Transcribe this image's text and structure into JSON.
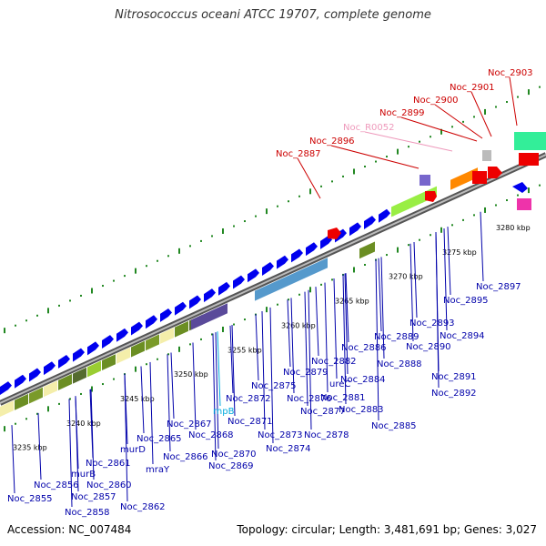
{
  "title": "Nitrosococcus oceani ATCC 19707, complete genome",
  "accession": "Accession: NC_007484",
  "summary": "Topology: circular; Length: 3,481,691 bp; Genes: 3,027",
  "colors": {
    "gene_blue": "#0000ee",
    "gene_red": "#ee0000",
    "label_blue": "#0000aa",
    "label_red": "#cc0000",
    "label_pink": "#ee99bb",
    "label_cyan": "#00aadd",
    "backbone": "#888888",
    "ticks": "#228822"
  },
  "kbp_ticks": [
    "3235 kbp",
    "3240 kbp",
    "3245 kbp",
    "3250 kbp",
    "3255 kbp",
    "3260 kbp",
    "3265 kbp",
    "3270 kbp",
    "3275 kbp",
    "3280 kbp"
  ],
  "gene_labels_top": [
    {
      "text": "Noc_2887",
      "color": "red"
    },
    {
      "text": "Noc_2896",
      "color": "red"
    },
    {
      "text": "Noc_R0052",
      "color": "pink"
    },
    {
      "text": "Noc_2899",
      "color": "red"
    },
    {
      "text": "Noc_2900",
      "color": "red"
    },
    {
      "text": "Noc_2901",
      "color": "red"
    },
    {
      "text": "Noc_2903",
      "color": "red"
    }
  ],
  "gene_labels_bottom": [
    {
      "text": "Noc_2855"
    },
    {
      "text": "Noc_2856"
    },
    {
      "text": "murB"
    },
    {
      "text": "Noc_2857"
    },
    {
      "text": "Noc_2858"
    },
    {
      "text": "Noc_2860"
    },
    {
      "text": "Noc_2861"
    },
    {
      "text": "murD"
    },
    {
      "text": "Noc_2862"
    },
    {
      "text": "mraY"
    },
    {
      "text": "Noc_2865"
    },
    {
      "text": "Noc_2866"
    },
    {
      "text": "Noc_2867"
    },
    {
      "text": "Noc_2868"
    },
    {
      "text": "rnpB",
      "color": "cyan"
    },
    {
      "text": "Noc_2869"
    },
    {
      "text": "Noc_2870"
    },
    {
      "text": "Noc_2871"
    },
    {
      "text": "Noc_2872"
    },
    {
      "text": "Noc_2873"
    },
    {
      "text": "Noc_2874"
    },
    {
      "text": "Noc_2875"
    },
    {
      "text": "Noc_2876"
    },
    {
      "text": "Noc_2877"
    },
    {
      "text": "Noc_2878"
    },
    {
      "text": "Noc_2879"
    },
    {
      "text": "ureC"
    },
    {
      "text": "Noc_2881"
    },
    {
      "text": "Noc_2882"
    },
    {
      "text": "Noc_2883"
    },
    {
      "text": "Noc_2884"
    },
    {
      "text": "Noc_2885"
    },
    {
      "text": "Noc_2886"
    },
    {
      "text": "Noc_2888"
    },
    {
      "text": "Noc_2889"
    },
    {
      "text": "Noc_2890"
    },
    {
      "text": "Noc_2891"
    },
    {
      "text": "Noc_2892"
    },
    {
      "text": "Noc_2893"
    },
    {
      "text": "Noc_2894"
    },
    {
      "text": "Noc_2895"
    },
    {
      "text": "Noc_2897"
    }
  ]
}
